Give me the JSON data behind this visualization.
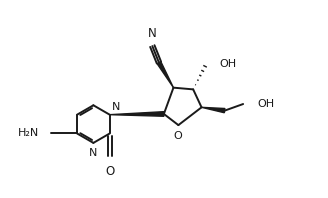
{
  "bg_color": "#ffffff",
  "line_color": "#1a1a1a",
  "text_color": "#1a1a1a",
  "figsize": [
    3.28,
    1.98
  ],
  "dpi": 100,
  "xlim": [
    -1.3,
    2.8
  ],
  "ylim": [
    -1.5,
    1.5
  ]
}
